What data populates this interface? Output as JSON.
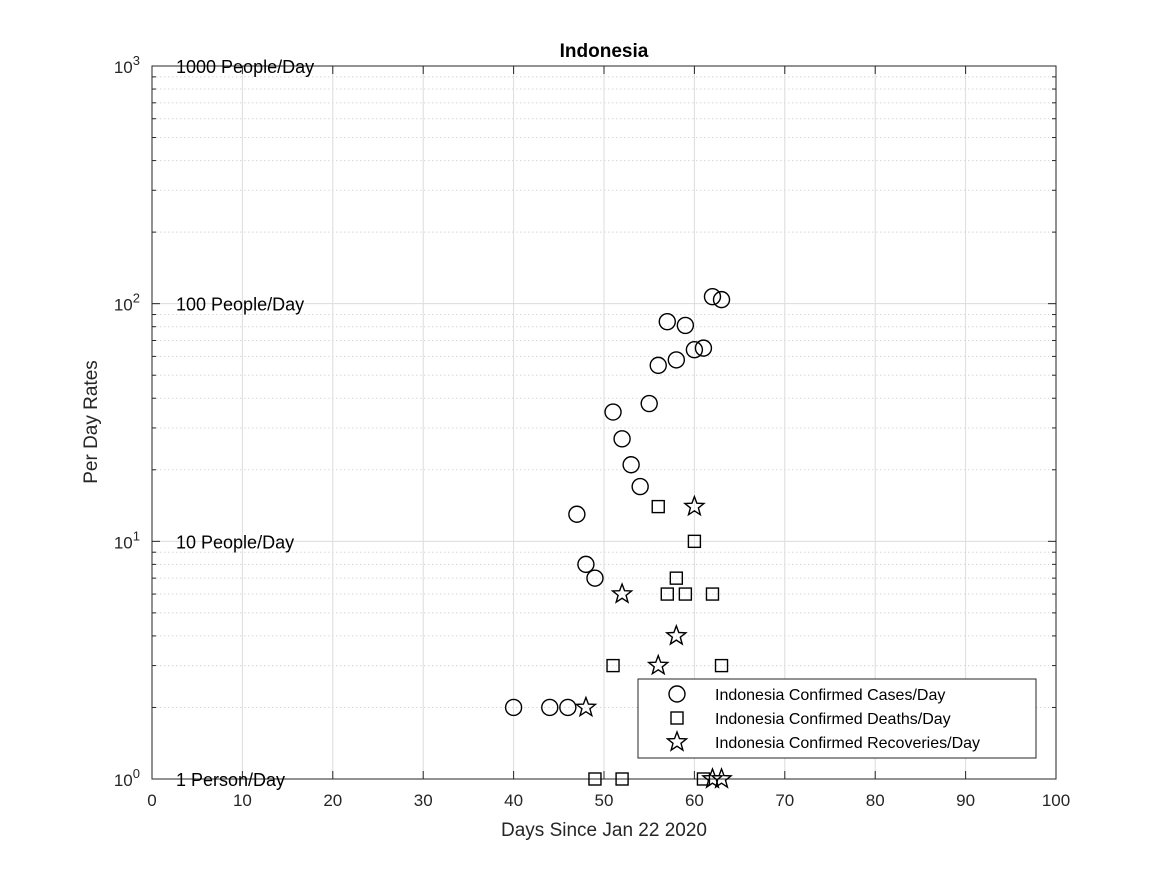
{
  "chart_data": {
    "type": "scatter",
    "title": "Indonesia",
    "xlabel": "Days Since Jan 22 2020",
    "ylabel": "Per Day Rates",
    "xlim": [
      0,
      100
    ],
    "ylim": [
      1,
      1000
    ],
    "yscale": "log",
    "grid": true,
    "x_ticks": [
      0,
      10,
      20,
      30,
      40,
      50,
      60,
      70,
      80,
      90,
      100
    ],
    "y_ticks": [
      {
        "value": 1,
        "base": "10",
        "exp": "0"
      },
      {
        "value": 10,
        "base": "10",
        "exp": "1"
      },
      {
        "value": 100,
        "base": "10",
        "exp": "2"
      },
      {
        "value": 1000,
        "base": "10",
        "exp": "3"
      }
    ],
    "annotations": [
      {
        "text": "1000 People/Day",
        "y": 1000
      },
      {
        "text": "100 People/Day",
        "y": 100
      },
      {
        "text": "10 People/Day",
        "y": 10
      },
      {
        "text": "1 Person/Day",
        "y": 1
      }
    ],
    "legend_position": "bottom-right",
    "series": [
      {
        "name": "Indonesia Confirmed Cases/Day",
        "marker": "circle",
        "points": [
          [
            40,
            2
          ],
          [
            44,
            2
          ],
          [
            46,
            2
          ],
          [
            47,
            13
          ],
          [
            48,
            8
          ],
          [
            49,
            7
          ],
          [
            51,
            35
          ],
          [
            52,
            27
          ],
          [
            53,
            21
          ],
          [
            54,
            17
          ],
          [
            55,
            38
          ],
          [
            56,
            55
          ],
          [
            57,
            84
          ],
          [
            58,
            58
          ],
          [
            59,
            81
          ],
          [
            60,
            64
          ],
          [
            61,
            65
          ],
          [
            62,
            107
          ],
          [
            63,
            104
          ]
        ]
      },
      {
        "name": "Indonesia Confirmed Deaths/Day",
        "marker": "square",
        "points": [
          [
            49,
            1
          ],
          [
            51,
            3
          ],
          [
            52,
            1
          ],
          [
            56,
            14
          ],
          [
            57,
            6
          ],
          [
            58,
            7
          ],
          [
            59,
            6
          ],
          [
            60,
            10
          ],
          [
            61,
            1
          ],
          [
            62,
            6
          ],
          [
            63,
            3
          ]
        ]
      },
      {
        "name": "Indonesia Confirmed Recoveries/Day",
        "marker": "star",
        "points": [
          [
            48,
            2
          ],
          [
            52,
            6
          ],
          [
            56,
            3
          ],
          [
            58,
            4
          ],
          [
            60,
            14
          ],
          [
            62,
            1
          ],
          [
            63,
            1
          ]
        ]
      }
    ]
  }
}
